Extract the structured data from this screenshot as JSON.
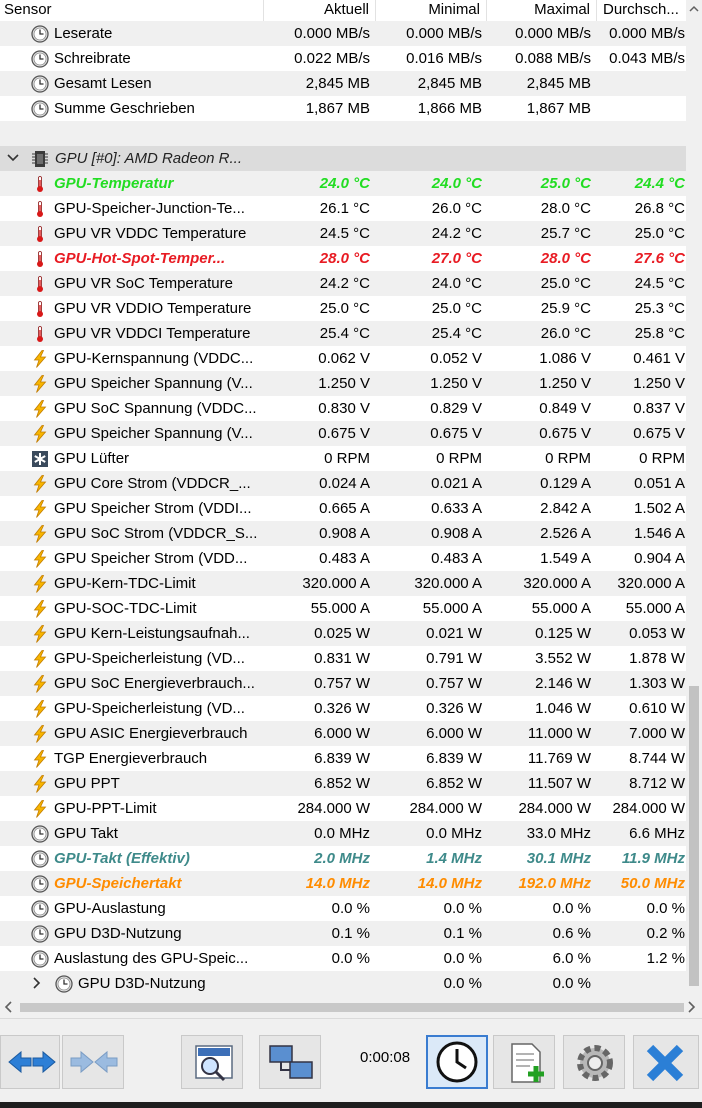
{
  "header": {
    "sensor": "Sensor",
    "current": "Aktuell",
    "min": "Minimal",
    "max": "Maximal",
    "avg": "Durchsch..."
  },
  "rows": [
    {
      "kind": "sensor",
      "icon": "clock-icon",
      "name": "Leserate",
      "cur": "0.000 MB/s",
      "min": "0.000 MB/s",
      "max": "0.000 MB/s",
      "avg": "0.000 MB/s"
    },
    {
      "kind": "sensor",
      "icon": "clock-icon",
      "name": "Schreibrate",
      "cur": "0.022 MB/s",
      "min": "0.016 MB/s",
      "max": "0.088 MB/s",
      "avg": "0.043 MB/s"
    },
    {
      "kind": "sensor",
      "icon": "clock-icon",
      "name": "Gesamt Lesen",
      "cur": "2,845 MB",
      "min": "2,845 MB",
      "max": "2,845 MB",
      "avg": ""
    },
    {
      "kind": "sensor",
      "icon": "clock-icon",
      "name": "Summe Geschrieben",
      "cur": "1,867 MB",
      "min": "1,866 MB",
      "max": "1,867 MB",
      "avg": ""
    },
    {
      "kind": "blank"
    },
    {
      "kind": "group",
      "icon": "gpu-chip-icon",
      "name": "GPU [#0]: AMD Radeon R..."
    },
    {
      "kind": "sensor",
      "icon": "thermometer-icon",
      "style": "green",
      "name": "GPU-Temperatur",
      "cur": "24.0 °C",
      "min": "24.0 °C",
      "max": "25.0 °C",
      "avg": "24.4 °C"
    },
    {
      "kind": "sensor",
      "icon": "thermometer-icon",
      "name": "GPU-Speicher-Junction-Te...",
      "cur": "26.1 °C",
      "min": "26.0 °C",
      "max": "28.0 °C",
      "avg": "26.8 °C"
    },
    {
      "kind": "sensor",
      "icon": "thermometer-icon",
      "name": "GPU VR VDDC Temperature",
      "cur": "24.5 °C",
      "min": "24.2 °C",
      "max": "25.7 °C",
      "avg": "25.0 °C"
    },
    {
      "kind": "sensor",
      "icon": "thermometer-icon",
      "style": "red",
      "name": "GPU-Hot-Spot-Temper...",
      "cur": "28.0 °C",
      "min": "27.0 °C",
      "max": "28.0 °C",
      "avg": "27.6 °C"
    },
    {
      "kind": "sensor",
      "icon": "thermometer-icon",
      "name": "GPU VR SoC Temperature",
      "cur": "24.2 °C",
      "min": "24.0 °C",
      "max": "25.0 °C",
      "avg": "24.5 °C"
    },
    {
      "kind": "sensor",
      "icon": "thermometer-icon",
      "name": "GPU VR VDDIO Temperature",
      "cur": "25.0 °C",
      "min": "25.0 °C",
      "max": "25.9 °C",
      "avg": "25.3 °C"
    },
    {
      "kind": "sensor",
      "icon": "thermometer-icon",
      "name": "GPU VR VDDCI Temperature",
      "cur": "25.4 °C",
      "min": "25.4 °C",
      "max": "26.0 °C",
      "avg": "25.8 °C"
    },
    {
      "kind": "sensor",
      "icon": "lightning-icon",
      "name": "GPU-Kernspannung (VDDC...",
      "cur": "0.062 V",
      "min": "0.052 V",
      "max": "1.086 V",
      "avg": "0.461 V"
    },
    {
      "kind": "sensor",
      "icon": "lightning-icon",
      "name": "GPU Speicher Spannung (V...",
      "cur": "1.250 V",
      "min": "1.250 V",
      "max": "1.250 V",
      "avg": "1.250 V"
    },
    {
      "kind": "sensor",
      "icon": "lightning-icon",
      "name": "GPU SoC Spannung (VDDC...",
      "cur": "0.830 V",
      "min": "0.829 V",
      "max": "0.849 V",
      "avg": "0.837 V"
    },
    {
      "kind": "sensor",
      "icon": "lightning-icon",
      "name": "GPU Speicher Spannung (V...",
      "cur": "0.675 V",
      "min": "0.675 V",
      "max": "0.675 V",
      "avg": "0.675 V"
    },
    {
      "kind": "sensor",
      "icon": "fan-icon",
      "name": "GPU Lüfter",
      "cur": "0 RPM",
      "min": "0 RPM",
      "max": "0 RPM",
      "avg": "0 RPM"
    },
    {
      "kind": "sensor",
      "icon": "lightning-icon",
      "name": "GPU Core Strom (VDDCR_...",
      "cur": "0.024 A",
      "min": "0.021 A",
      "max": "0.129 A",
      "avg": "0.051 A"
    },
    {
      "kind": "sensor",
      "icon": "lightning-icon",
      "name": "GPU Speicher Strom (VDDI...",
      "cur": "0.665 A",
      "min": "0.633 A",
      "max": "2.842 A",
      "avg": "1.502 A"
    },
    {
      "kind": "sensor",
      "icon": "lightning-icon",
      "name": "GPU SoC Strom (VDDCR_S...",
      "cur": "0.908 A",
      "min": "0.908 A",
      "max": "2.526 A",
      "avg": "1.546 A"
    },
    {
      "kind": "sensor",
      "icon": "lightning-icon",
      "name": "GPU Speicher Strom (VDD...",
      "cur": "0.483 A",
      "min": "0.483 A",
      "max": "1.549 A",
      "avg": "0.904 A"
    },
    {
      "kind": "sensor",
      "icon": "lightning-icon",
      "name": "GPU-Kern-TDC-Limit",
      "cur": "320.000 A",
      "min": "320.000 A",
      "max": "320.000 A",
      "avg": "320.000 A"
    },
    {
      "kind": "sensor",
      "icon": "lightning-icon",
      "name": "GPU-SOC-TDC-Limit",
      "cur": "55.000 A",
      "min": "55.000 A",
      "max": "55.000 A",
      "avg": "55.000 A"
    },
    {
      "kind": "sensor",
      "icon": "lightning-icon",
      "name": "GPU Kern-Leistungsaufnah...",
      "cur": "0.025 W",
      "min": "0.021 W",
      "max": "0.125 W",
      "avg": "0.053 W"
    },
    {
      "kind": "sensor",
      "icon": "lightning-icon",
      "name": "GPU-Speicherleistung (VD...",
      "cur": "0.831 W",
      "min": "0.791 W",
      "max": "3.552 W",
      "avg": "1.878 W"
    },
    {
      "kind": "sensor",
      "icon": "lightning-icon",
      "name": "GPU SoC Energieverbrauch...",
      "cur": "0.757 W",
      "min": "0.757 W",
      "max": "2.146 W",
      "avg": "1.303 W"
    },
    {
      "kind": "sensor",
      "icon": "lightning-icon",
      "name": "GPU-Speicherleistung (VD...",
      "cur": "0.326 W",
      "min": "0.326 W",
      "max": "1.046 W",
      "avg": "0.610 W"
    },
    {
      "kind": "sensor",
      "icon": "lightning-icon",
      "name": "GPU ASIC Energieverbrauch",
      "cur": "6.000 W",
      "min": "6.000 W",
      "max": "11.000 W",
      "avg": "7.000 W"
    },
    {
      "kind": "sensor",
      "icon": "lightning-icon",
      "name": "TGP Energieverbrauch",
      "cur": "6.839 W",
      "min": "6.839 W",
      "max": "11.769 W",
      "avg": "8.744 W"
    },
    {
      "kind": "sensor",
      "icon": "lightning-icon",
      "name": "GPU PPT",
      "cur": "6.852 W",
      "min": "6.852 W",
      "max": "11.507 W",
      "avg": "8.712 W"
    },
    {
      "kind": "sensor",
      "icon": "lightning-icon",
      "name": "GPU-PPT-Limit",
      "cur": "284.000 W",
      "min": "284.000 W",
      "max": "284.000 W",
      "avg": "284.000 W"
    },
    {
      "kind": "sensor",
      "icon": "clock-icon",
      "name": "GPU Takt",
      "cur": "0.0 MHz",
      "min": "0.0 MHz",
      "max": "33.0 MHz",
      "avg": "6.6 MHz"
    },
    {
      "kind": "sensor",
      "icon": "clock-icon",
      "style": "teal",
      "name": "GPU-Takt (Effektiv)",
      "cur": "2.0 MHz",
      "min": "1.4 MHz",
      "max": "30.1 MHz",
      "avg": "11.9 MHz"
    },
    {
      "kind": "sensor",
      "icon": "clock-icon",
      "style": "orange",
      "name": "GPU-Speichertakt",
      "cur": "14.0 MHz",
      "min": "14.0 MHz",
      "max": "192.0 MHz",
      "avg": "50.0 MHz"
    },
    {
      "kind": "sensor",
      "icon": "clock-icon",
      "name": "GPU-Auslastung",
      "cur": "0.0 %",
      "min": "0.0 %",
      "max": "0.0 %",
      "avg": "0.0 %"
    },
    {
      "kind": "sensor",
      "icon": "clock-icon",
      "name": "GPU D3D-Nutzung",
      "cur": "0.1 %",
      "min": "0.1 %",
      "max": "0.6 %",
      "avg": "0.2 %"
    },
    {
      "kind": "sensor",
      "icon": "clock-icon",
      "name": "Auslastung des GPU-Speic...",
      "cur": "0.0 %",
      "min": "0.0 %",
      "max": "6.0 %",
      "avg": "1.2 %"
    },
    {
      "kind": "subgroup",
      "icon": "clock-icon",
      "name": "GPU D3D-Nutzung",
      "cur": "",
      "min": "0.0 %",
      "max": "0.0 %",
      "avg": ""
    }
  ],
  "toolbar": {
    "timer": "0:00:08"
  }
}
